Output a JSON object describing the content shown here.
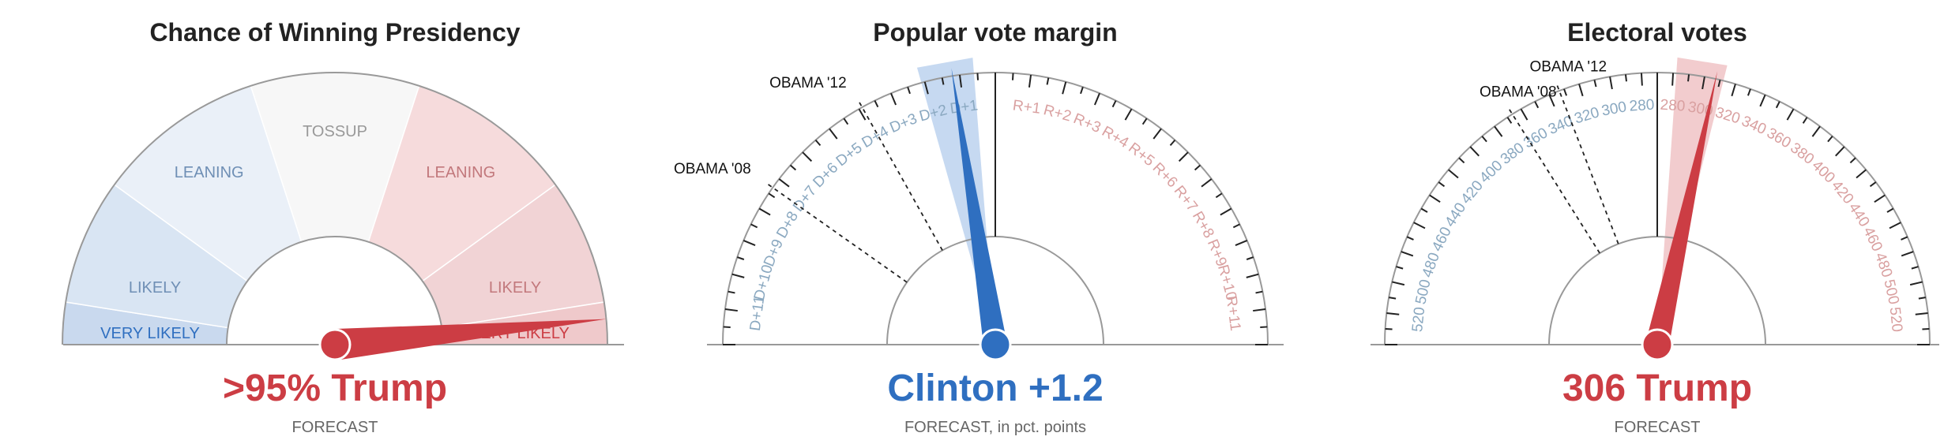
{
  "colors": {
    "dem": "#2f6fc0",
    "dem_light": "#bcd2ee",
    "rep": "#cc3d44",
    "rep_light": "#f1c7c9",
    "dem_tick_label": "#8aa8c0",
    "rep_tick_label": "#d9a0a0",
    "axis": "#999999",
    "tick": "#222222"
  },
  "gauges": [
    {
      "title": "Chance of Winning Presidency",
      "headline": ">95% Trump",
      "headline_color": "rep",
      "caption": "FORECAST",
      "caption_suffix": "",
      "chart_data": {
        "type": "gauge",
        "scale": "win probability, Democratic 100% (left) to Republican 100% (right)",
        "needle_party": "rep",
        "needle_value_rep_pct": 97,
        "bands": [
          {
            "label": "VERY LIKELY",
            "party": "dem",
            "from_pct": 0,
            "to_pct": 5
          },
          {
            "label": "LIKELY",
            "party": "dem",
            "from_pct": 5,
            "to_pct": 20
          },
          {
            "label": "LEANING",
            "party": "dem",
            "from_pct": 20,
            "to_pct": 40
          },
          {
            "label": "TOSSUP",
            "party": "none",
            "from_pct": 40,
            "to_pct": 60
          },
          {
            "label": "LEANING",
            "party": "rep",
            "from_pct": 60,
            "to_pct": 80
          },
          {
            "label": "LIKELY",
            "party": "rep",
            "from_pct": 80,
            "to_pct": 95
          },
          {
            "label": "VERY LIKELY",
            "party": "rep",
            "from_pct": 95,
            "to_pct": 100
          }
        ]
      }
    },
    {
      "title": "Popular vote margin",
      "headline": "Clinton +1.2",
      "headline_color": "dem",
      "caption": "FORECAST",
      "caption_suffix": ", in pct. points",
      "chart_data": {
        "type": "gauge",
        "scale": "popular vote margin, pct. points",
        "range": [
          -12,
          12
        ],
        "needle_party": "dem",
        "needle_value": -1.2,
        "uncertainty_band": [
          -2.1,
          -0.6
        ],
        "center_line": 0,
        "tick_labels_dem": [
          "D+1",
          "D+2",
          "D+3",
          "D+4",
          "D+5",
          "D+6",
          "D+7",
          "D+8",
          "D+9",
          "D+10",
          "D+11"
        ],
        "tick_labels_rep": [
          "R+1",
          "R+2",
          "R+3",
          "R+4",
          "R+5",
          "R+6",
          "R+7",
          "R+8",
          "R+9",
          "R+10",
          "R+11"
        ],
        "reference_lines": [
          {
            "label": "OBAMA '12",
            "value": -3.9
          },
          {
            "label": "OBAMA '08",
            "value": -7.3
          }
        ]
      }
    },
    {
      "title": "Electoral votes",
      "headline": "306 Trump",
      "headline_color": "rep",
      "caption": "FORECAST",
      "caption_suffix": "",
      "chart_data": {
        "type": "gauge",
        "scale": "electoral votes, Democratic (left) to Republican (right)",
        "range_each_side": [
          270,
          538
        ],
        "needle_party": "rep",
        "needle_value_rep_ev": 306,
        "uncertainty_band_rep_ev": [
          281,
          311
        ],
        "center_line": 269,
        "tick_labels_dem": [
          "280",
          "300",
          "320",
          "340",
          "360",
          "380",
          "400",
          "420",
          "440",
          "460",
          "480",
          "500",
          "520"
        ],
        "tick_labels_rep": [
          "280",
          "300",
          "320",
          "340",
          "360",
          "380",
          "400",
          "420",
          "440",
          "460",
          "480",
          "500",
          "520"
        ],
        "reference_lines": [
          {
            "label": "OBAMA '12",
            "dem_ev": 332
          },
          {
            "label": "OBAMA '08",
            "dem_ev": 365
          }
        ]
      }
    }
  ]
}
